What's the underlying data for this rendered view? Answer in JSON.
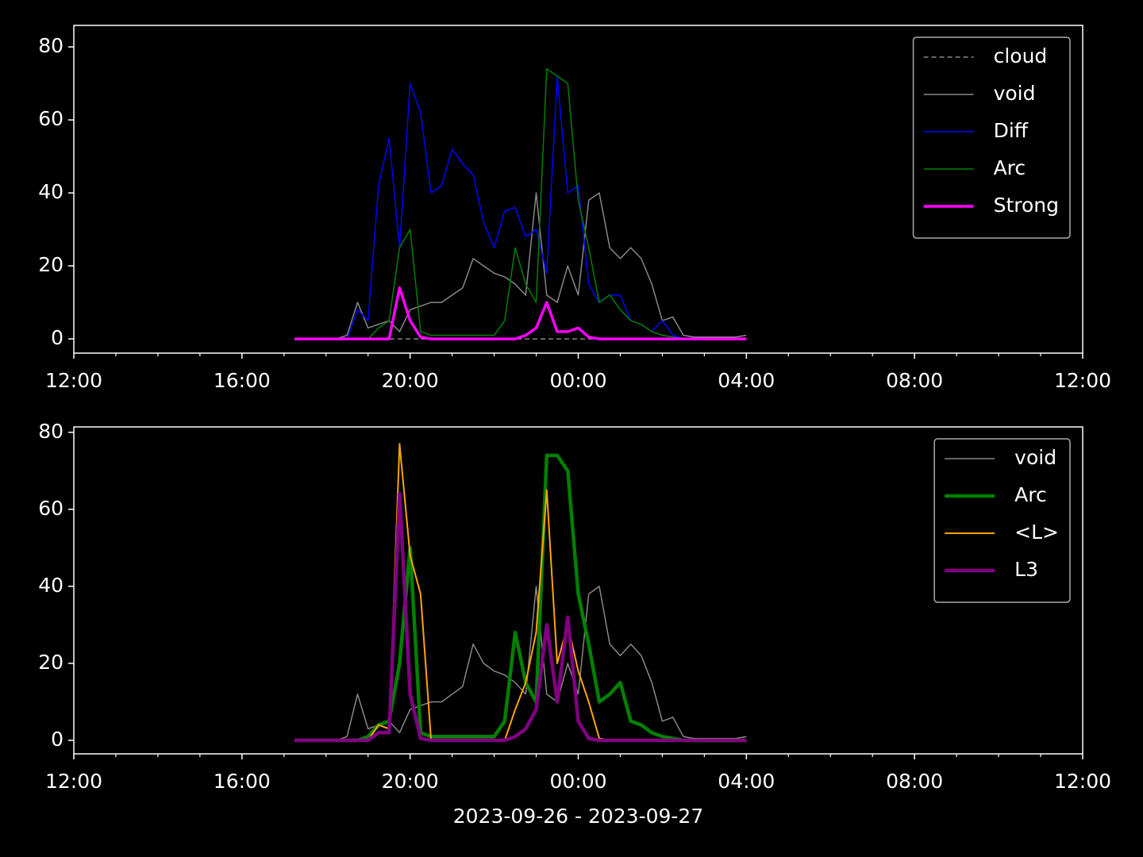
{
  "chart_data": [
    {
      "type": "line",
      "x": [
        17.25,
        17.5,
        17.75,
        18,
        18.25,
        18.5,
        18.75,
        19,
        19.25,
        19.5,
        19.75,
        20,
        20.25,
        20.5,
        20.75,
        21,
        21.25,
        21.5,
        21.75,
        22,
        22.25,
        22.5,
        22.75,
        23,
        23.25,
        23.5,
        23.75,
        24,
        24.25,
        24.5,
        24.75,
        25,
        25.25,
        25.5,
        25.75,
        26,
        26.25,
        26.5,
        26.75,
        27,
        27.25,
        27.5,
        27.75,
        28
      ],
      "series": [
        {
          "name": "cloud",
          "color": "#888888",
          "linestyle": "dashed",
          "linewidth": 1.5,
          "values": [
            0,
            0,
            0,
            0,
            0,
            0,
            0,
            0,
            0,
            0,
            0,
            0,
            0,
            0,
            0,
            0,
            0,
            0,
            0,
            0,
            0,
            0,
            0,
            0,
            0,
            0,
            0,
            0,
            0,
            0,
            0,
            0,
            0,
            0,
            0,
            0,
            0,
            0,
            0,
            0,
            0,
            0,
            0,
            0
          ]
        },
        {
          "name": "void",
          "color": "#888888",
          "linestyle": "solid",
          "linewidth": 1.5,
          "values": [
            0,
            0,
            0,
            0,
            0,
            1,
            10,
            3,
            4,
            5,
            2,
            8,
            9,
            10,
            10,
            12,
            14,
            22,
            20,
            18,
            17,
            15,
            12,
            40,
            12,
            10,
            20,
            12,
            38,
            40,
            25,
            22,
            25,
            22,
            15,
            5,
            6,
            1,
            0.5,
            0.5,
            0.5,
            0.5,
            0.5,
            1
          ]
        },
        {
          "name": "Diff",
          "color": "#0000ff",
          "linestyle": "solid",
          "linewidth": 1.5,
          "values": [
            0,
            0,
            0,
            0,
            0,
            0,
            8,
            5,
            42,
            55,
            25,
            70,
            62,
            40,
            42,
            52,
            48,
            45,
            32,
            25,
            35,
            36,
            28,
            30,
            18,
            72,
            40,
            42,
            15,
            10,
            12,
            12,
            5,
            4,
            2,
            5,
            1,
            0,
            0,
            0,
            0,
            0,
            0,
            0
          ]
        },
        {
          "name": "Arc",
          "color": "#008000",
          "linestyle": "solid",
          "linewidth": 1.5,
          "values": [
            0,
            0,
            0,
            0,
            0,
            0,
            0,
            0,
            3,
            5,
            25,
            30,
            2,
            1,
            1,
            1,
            1,
            1,
            1,
            1,
            5,
            25,
            15,
            10,
            74,
            72,
            70,
            38,
            25,
            10,
            12,
            8,
            5,
            4,
            2,
            1,
            0.5,
            0,
            0,
            0,
            0,
            0,
            0,
            0
          ]
        },
        {
          "name": "Strong",
          "color": "#ff00ff",
          "linestyle": "solid",
          "linewidth": 3.5,
          "values": [
            0,
            0,
            0,
            0,
            0,
            0,
            0,
            0,
            0,
            0,
            14,
            5,
            0.5,
            0,
            0,
            0,
            0,
            0,
            0,
            0,
            0,
            0,
            1,
            3,
            10,
            2,
            2,
            3,
            0.5,
            0,
            0,
            0,
            0,
            0,
            0,
            0,
            0,
            0,
            0,
            0,
            0,
            0,
            0,
            0
          ]
        }
      ],
      "xlim": [
        12,
        36
      ],
      "xticks": [
        {
          "value": 12,
          "label": "12:00"
        },
        {
          "value": 16,
          "label": "16:00"
        },
        {
          "value": 20,
          "label": "20:00"
        },
        {
          "value": 24,
          "label": "00:00"
        },
        {
          "value": 28,
          "label": "04:00"
        },
        {
          "value": 32,
          "label": "08:00"
        },
        {
          "value": 36,
          "label": "12:00"
        }
      ],
      "xminorticks": [
        13,
        14,
        15,
        17,
        18,
        19,
        21,
        22,
        23,
        25,
        26,
        27,
        29,
        30,
        31,
        33,
        34,
        35
      ],
      "ylim": [
        -3.9,
        85.9
      ],
      "yticks": [
        0,
        20,
        40,
        60,
        80
      ],
      "legend": "upper right"
    },
    {
      "type": "line",
      "x": [
        17.25,
        17.5,
        17.75,
        18,
        18.25,
        18.5,
        18.75,
        19,
        19.25,
        19.5,
        19.75,
        20,
        20.25,
        20.5,
        20.75,
        21,
        21.25,
        21.5,
        21.75,
        22,
        22.25,
        22.5,
        22.75,
        23,
        23.25,
        23.5,
        23.75,
        24,
        24.25,
        24.5,
        24.75,
        25,
        25.25,
        25.5,
        25.75,
        26,
        26.25,
        26.5,
        26.75,
        27,
        27.25,
        27.5,
        27.75,
        28
      ],
      "series": [
        {
          "name": "void",
          "color": "#888888",
          "linestyle": "solid",
          "linewidth": 1.5,
          "values": [
            0,
            0,
            0,
            0,
            0,
            1,
            12,
            3,
            4,
            5,
            2,
            8,
            9,
            10,
            10,
            12,
            14,
            25,
            20,
            18,
            17,
            15,
            12,
            40,
            12,
            10,
            20,
            12,
            38,
            40,
            25,
            22,
            25,
            22,
            15,
            5,
            6,
            1,
            0.5,
            0.5,
            0.5,
            0.5,
            0.5,
            1
          ]
        },
        {
          "name": "Arc",
          "color": "#008000",
          "linestyle": "solid",
          "linewidth": 4.5,
          "values": [
            0,
            0,
            0,
            0,
            0,
            0,
            0,
            1,
            4,
            5,
            20,
            50,
            2,
            1,
            1,
            1,
            1,
            1,
            1,
            1,
            5,
            28,
            15,
            10,
            74,
            74,
            70,
            38,
            25,
            10,
            12,
            15,
            5,
            4,
            2,
            1,
            0.5,
            0,
            0,
            0,
            0,
            0,
            0,
            0
          ]
        },
        {
          "name": "<L>",
          "color": "#ffa500",
          "linestyle": "solid",
          "linewidth": 2,
          "values": [
            0,
            0,
            0,
            0,
            0,
            0,
            0,
            0,
            4,
            3,
            77,
            48,
            38,
            0,
            0,
            0,
            0,
            0,
            0,
            0,
            0,
            8,
            15,
            28,
            65,
            20,
            30,
            18,
            10,
            0.5,
            0,
            0,
            0,
            0,
            0,
            0,
            0,
            0,
            0,
            0,
            0,
            0,
            0,
            0
          ]
        },
        {
          "name": "L3",
          "color": "#800080",
          "linestyle": "solid",
          "linewidth": 4.5,
          "values": [
            0,
            0,
            0,
            0,
            0,
            0,
            0,
            0,
            2,
            2,
            64,
            12,
            0.5,
            0,
            0,
            0,
            0,
            0,
            0,
            0,
            0,
            1,
            3,
            8,
            30,
            10,
            32,
            5,
            0.5,
            0,
            0,
            0,
            0,
            0,
            0,
            0,
            0,
            0,
            0,
            0,
            0,
            0,
            0,
            0
          ]
        }
      ],
      "xlim": [
        12,
        36
      ],
      "xticks": [
        {
          "value": 12,
          "label": "12:00"
        },
        {
          "value": 16,
          "label": "16:00"
        },
        {
          "value": 20,
          "label": "20:00"
        },
        {
          "value": 24,
          "label": "00:00"
        },
        {
          "value": 28,
          "label": "04:00"
        },
        {
          "value": 32,
          "label": "08:00"
        },
        {
          "value": 36,
          "label": "12:00"
        }
      ],
      "xminorticks": [
        13,
        14,
        15,
        17,
        18,
        19,
        21,
        22,
        23,
        25,
        26,
        27,
        29,
        30,
        31,
        33,
        34,
        35
      ],
      "ylim": [
        -3.5,
        81.4
      ],
      "yticks": [
        0,
        20,
        40,
        60,
        80
      ],
      "xlabel": "2023-09-26 - 2023-09-27",
      "legend": "upper right"
    }
  ]
}
